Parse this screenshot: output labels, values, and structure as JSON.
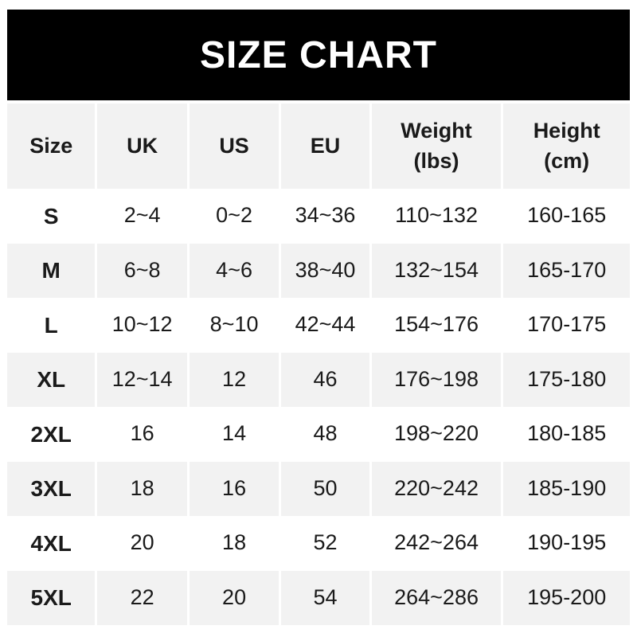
{
  "title": "SIZE CHART",
  "colors": {
    "banner_bg": "#000000",
    "banner_text": "#ffffff",
    "row_alt_bg": "#f2f2f2",
    "row_bg": "#ffffff",
    "text": "#1a1a1a"
  },
  "chart_data": {
    "type": "table",
    "title": "SIZE CHART",
    "columns": [
      "Size",
      "UK",
      "US",
      "EU",
      "Weight\n(lbs)",
      "Height\n(cm)"
    ],
    "rows": [
      [
        "S",
        "2~4",
        "0~2",
        "34~36",
        "110~132",
        "160-165"
      ],
      [
        "M",
        "6~8",
        "4~6",
        "38~40",
        "132~154",
        "165-170"
      ],
      [
        "L",
        "10~12",
        "8~10",
        "42~44",
        "154~176",
        "170-175"
      ],
      [
        "XL",
        "12~14",
        "12",
        "46",
        "176~198",
        "175-180"
      ],
      [
        "2XL",
        "16",
        "14",
        "48",
        "198~220",
        "180-185"
      ],
      [
        "3XL",
        "18",
        "16",
        "50",
        "220~242",
        "185-190"
      ],
      [
        "4XL",
        "20",
        "18",
        "52",
        "242~264",
        "190-195"
      ],
      [
        "5XL",
        "22",
        "20",
        "54",
        "264~286",
        "195-200"
      ]
    ]
  }
}
